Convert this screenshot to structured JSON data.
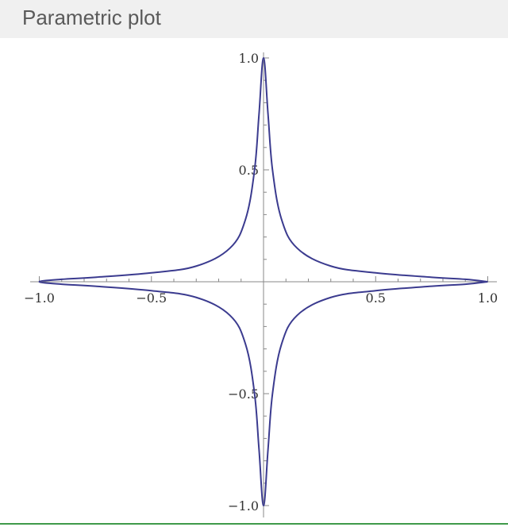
{
  "header": {
    "title": "Parametric plot"
  },
  "chart_data": {
    "type": "line",
    "title": "",
    "xlabel": "",
    "ylabel": "",
    "xlim": [
      -1.0,
      1.0
    ],
    "ylim": [
      -1.0,
      1.0
    ],
    "x_ticks": [
      {
        "value": -1.0,
        "label": "−1.0"
      },
      {
        "value": -0.5,
        "label": "−0.5"
      },
      {
        "value": 0.5,
        "label": "0.5"
      },
      {
        "value": 1.0,
        "label": "1.0"
      }
    ],
    "y_ticks": [
      {
        "value": 1.0,
        "label": "1.0"
      },
      {
        "value": 0.5,
        "label": "0.5"
      },
      {
        "value": -0.5,
        "label": "−0.5"
      },
      {
        "value": -1.0,
        "label": "−1.0"
      }
    ],
    "minor_tick_step": 0.1,
    "grid": false,
    "line_color": "#3b3b8f",
    "axis_color": "#888888",
    "series": [
      {
        "x": [
          1.0,
          0.9,
          0.75,
          0.5,
          0.3,
          0.15,
          0.08,
          0.04,
          0.02,
          0.0,
          -0.02,
          -0.04,
          -0.08,
          -0.15,
          -0.3,
          -0.5,
          -0.75,
          -0.9,
          -1.0,
          -0.9,
          -0.75,
          -0.5,
          -0.3,
          -0.15,
          -0.08,
          -0.04,
          -0.02,
          0.0,
          0.02,
          0.04,
          0.08,
          0.15,
          0.3,
          0.5,
          0.75,
          0.9,
          1.0
        ],
        "y": [
          0.0,
          0.011,
          0.02,
          0.04,
          0.07,
          0.15,
          0.28,
          0.5,
          0.75,
          1.0,
          0.75,
          0.5,
          0.28,
          0.15,
          0.07,
          0.04,
          0.02,
          0.011,
          0.0,
          -0.011,
          -0.02,
          -0.04,
          -0.07,
          -0.15,
          -0.28,
          -0.5,
          -0.75,
          -1.0,
          -0.75,
          -0.5,
          -0.28,
          -0.15,
          -0.07,
          -0.04,
          -0.02,
          -0.011,
          0.0
        ]
      }
    ]
  }
}
